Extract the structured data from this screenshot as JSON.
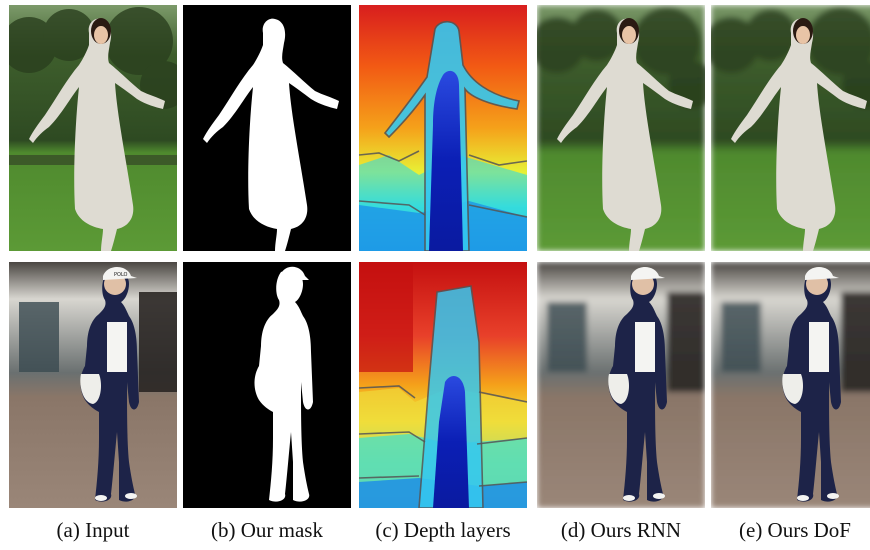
{
  "figure": {
    "captions": [
      {
        "label": "(a) Input"
      },
      {
        "label": "(b) Our mask"
      },
      {
        "label": "(c) Depth layers"
      },
      {
        "label": "(d) Ours RNN"
      },
      {
        "label": "(e) Ours DoF"
      }
    ],
    "rows": [
      {
        "scene": "park",
        "subject_dress": "white sleeveless dress"
      },
      {
        "scene": "street",
        "subject_outfit": "navy tracksuit and white cap",
        "cap_text": "POLO"
      }
    ],
    "colors": {
      "grass": "#4f8a2e",
      "trees": "#2f4a22",
      "street_floor": "#8a7668",
      "mask_bg": "#000000",
      "mask_fg": "#ffffff",
      "depth_near": "#0b1fb5",
      "depth_far": "#d81e1e"
    }
  }
}
